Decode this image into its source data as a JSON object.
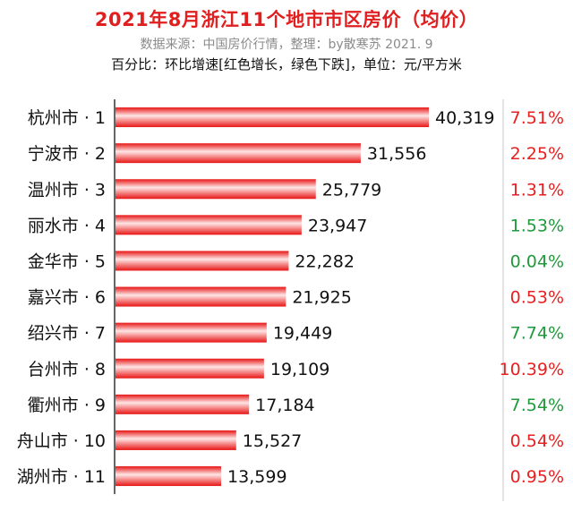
{
  "chart_data": {
    "type": "bar",
    "orientation": "horizontal",
    "title": "2021年8月浙江11个地市市区房价（均价）",
    "source": "数据来源：中国房价行情，整理：by散寒苏  2021. 9",
    "note": "百分比：环比增速[红色增长，绿色下跌]，单位：元/平方米",
    "categories": [
      "杭州市 · 1",
      "宁波市 · 2",
      "温州市 · 3",
      "丽水市 · 4",
      "金华市 · 5",
      "嘉兴市 · 6",
      "绍兴市 · 7",
      "台州市 · 8",
      "衢州市 · 9",
      "舟山市 · 10",
      "湖州市 · 11"
    ],
    "values": [
      40319,
      31556,
      25779,
      23947,
      22282,
      21925,
      19449,
      19109,
      17184,
      15527,
      13599
    ],
    "value_labels": [
      "40,319",
      "31,556",
      "25,779",
      "23,947",
      "22,282",
      "21,925",
      "19,449",
      "19,109",
      "17,184",
      "15,527",
      "13,599"
    ],
    "growth_labels": [
      "7.51%",
      "2.25%",
      "1.31%",
      "1.53%",
      "0.04%",
      "0.53%",
      "7.74%",
      "10.39%",
      "7.54%",
      "0.54%",
      "0.95%"
    ],
    "growth_direction": [
      "up",
      "up",
      "up",
      "down",
      "down",
      "up",
      "down",
      "up",
      "down",
      "up",
      "up"
    ],
    "colors": {
      "bar": "#e81515",
      "bar_highlight": "#ffe6e6",
      "up": "#e62020",
      "down": "#1f9a3a",
      "axis": "#333333",
      "divider": "#c8c8c8",
      "title": "#e02020"
    },
    "grid": false,
    "legend": "none"
  }
}
